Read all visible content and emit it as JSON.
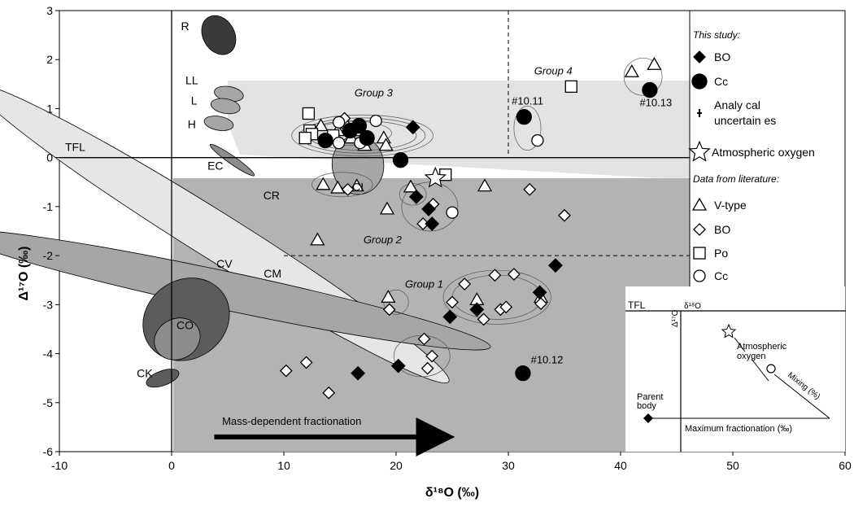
{
  "chart_data": {
    "type": "scatter",
    "xlabel": "δ¹⁸O (‰)",
    "ylabel": "Δ¹⁷O (‰)",
    "xlim": [
      -10,
      60
    ],
    "ylim": [
      -6,
      3
    ],
    "xticks": [
      "-10",
      "0",
      "10",
      "20",
      "30",
      "40",
      "50",
      "60"
    ],
    "yticks": [
      "-6",
      "-5",
      "-4",
      "-3",
      "-2",
      "-1",
      "0",
      "1",
      "2",
      "3"
    ],
    "grid": false,
    "tfl_label": "TFL",
    "fields": [
      {
        "label": "R",
        "cx": 4.2,
        "cy": 2.5,
        "rx": 1.4,
        "ry": 0.42,
        "angle": -30,
        "fill": "#3b3b3b"
      },
      {
        "label": "LL",
        "cx": 5.1,
        "cy": 1.3,
        "rx": 0.65,
        "ry": 0.3,
        "angle": -80,
        "fill": "#a6a6a6"
      },
      {
        "label": "L",
        "cx": 4.8,
        "cy": 1.05,
        "rx": 0.65,
        "ry": 0.3,
        "angle": -80,
        "fill": "#a6a6a6"
      },
      {
        "label": "H",
        "cx": 4.2,
        "cy": 0.7,
        "rx": 0.62,
        "ry": 0.3,
        "angle": -80,
        "fill": "#a6a6a6"
      },
      {
        "label": "EC",
        "cx": 5.4,
        "cy": -0.05,
        "rx": 0.35,
        "ry": 0.55,
        "angle": -55,
        "fill": "#8c8c8c"
      },
      {
        "label": "CR",
        "cx": 3.6,
        "cy": -1.55,
        "rx": 2.1,
        "ry": 5.7,
        "angle": -58,
        "fill": "#e6e6e6"
      },
      {
        "label": "CM",
        "cx": 4.5,
        "cy": -2.7,
        "rx": 1.7,
        "ry": 5.6,
        "angle": -78,
        "fill": "#a6a6a6"
      },
      {
        "label": "CV",
        "cx": 1.3,
        "cy": -3.3,
        "rx": 3.5,
        "ry": 0.92,
        "angle": 55,
        "fill": "#5c5c5c"
      },
      {
        "label": "CO",
        "cx": 0.5,
        "cy": -3.7,
        "rx": 1.8,
        "ry": 0.48,
        "angle": 63,
        "fill": "#8c8c8c"
      },
      {
        "label": "CK",
        "cx": -0.8,
        "cy": -4.5,
        "rx": 0.65,
        "ry": 0.35,
        "angle": 70,
        "fill": "#5c5c5c"
      },
      {
        "label": "CI",
        "cx": 16.6,
        "cy": -0.15,
        "rx": 2.3,
        "ry": 0.6,
        "angle": -5,
        "fill": "#a6a6a6"
      }
    ],
    "field_labels": [
      {
        "text": "R",
        "x": 1.2,
        "y": 2.6
      },
      {
        "text": "LL",
        "x": 1.8,
        "y": 1.5
      },
      {
        "text": "L",
        "x": 2.0,
        "y": 1.08
      },
      {
        "text": "H",
        "x": 1.8,
        "y": 0.6
      },
      {
        "text": "EC",
        "x": 3.9,
        "y": -0.25
      },
      {
        "text": "CR",
        "x": 8.9,
        "y": -0.85
      },
      {
        "text": "CV",
        "x": 4.7,
        "y": -2.25
      },
      {
        "text": "CM",
        "x": 9.0,
        "y": -2.45
      },
      {
        "text": "CO",
        "x": 1.2,
        "y": -3.5
      },
      {
        "text": "CK",
        "x": -2.4,
        "y": -4.48
      },
      {
        "text": "CI",
        "x": 16.6,
        "y": -0.68
      }
    ],
    "group_labels": [
      {
        "text": "Group 3",
        "x": 18.0,
        "y": 1.25
      },
      {
        "text": "Group 4",
        "x": 34.0,
        "y": 1.7
      },
      {
        "text": "Group 2",
        "x": 18.8,
        "y": -1.75
      },
      {
        "text": "Group 1",
        "x": 22.5,
        "y": -2.65
      }
    ],
    "annotations": [
      {
        "text": "#10.11",
        "x": 30.3,
        "y": 1.08
      },
      {
        "text": "#10.13",
        "x": 41.7,
        "y": 1.05
      },
      {
        "text": "#10.12",
        "x": 32.0,
        "y": -4.2
      }
    ],
    "arrow_label": "Mass-dependent fractionation",
    "series": [
      {
        "name": "BO",
        "group": "This study",
        "marker": "diamond",
        "filled": true,
        "points": [
          [
            21.5,
            0.62
          ],
          [
            21.8,
            -0.8
          ],
          [
            22.9,
            -1.05
          ],
          [
            23.2,
            -1.35
          ],
          [
            34.2,
            -2.2
          ],
          [
            32.8,
            -2.75
          ],
          [
            27.2,
            -3.1
          ],
          [
            24.8,
            -3.25
          ],
          [
            20.2,
            -4.25
          ],
          [
            16.6,
            -4.4
          ]
        ]
      },
      {
        "name": "Cc",
        "group": "This study",
        "marker": "circle",
        "filled": true,
        "points": [
          [
            31.4,
            0.83
          ],
          [
            42.6,
            1.38
          ],
          [
            13.7,
            0.35
          ],
          [
            15.9,
            0.55
          ],
          [
            16.7,
            0.65
          ],
          [
            17.4,
            0.4
          ],
          [
            20.4,
            -0.05
          ],
          [
            31.3,
            -4.4
          ]
        ]
      },
      {
        "name": "V-type",
        "group": "Data from literature",
        "marker": "triangle",
        "filled": false,
        "points": [
          [
            41.0,
            1.75
          ],
          [
            43.0,
            1.9
          ],
          [
            13.3,
            0.65
          ],
          [
            14.8,
            0.55
          ],
          [
            15.5,
            0.7
          ],
          [
            16.0,
            0.4
          ],
          [
            17.2,
            0.25
          ],
          [
            18.9,
            0.4
          ],
          [
            19.1,
            0.25
          ],
          [
            13.5,
            -0.55
          ],
          [
            14.8,
            -0.62
          ],
          [
            16.5,
            -0.58
          ],
          [
            21.3,
            -0.6
          ],
          [
            19.2,
            -1.05
          ],
          [
            27.9,
            -0.58
          ],
          [
            13.0,
            -1.68
          ],
          [
            19.3,
            -2.85
          ],
          [
            27.2,
            -2.9
          ],
          [
            32.9,
            -2.85
          ]
        ]
      },
      {
        "name": "BO",
        "group": "Data from literature",
        "marker": "diamond",
        "filled": false,
        "points": [
          [
            15.4,
            0.8
          ],
          [
            15.7,
            -0.65
          ],
          [
            22.4,
            -1.35
          ],
          [
            23.3,
            -0.95
          ],
          [
            31.9,
            -0.65
          ],
          [
            35.0,
            -1.18
          ],
          [
            26.1,
            -2.58
          ],
          [
            28.8,
            -2.4
          ],
          [
            30.5,
            -2.38
          ],
          [
            25.0,
            -2.95
          ],
          [
            27.8,
            -3.3
          ],
          [
            29.3,
            -3.1
          ],
          [
            29.8,
            -3.05
          ],
          [
            32.9,
            -2.98
          ],
          [
            19.4,
            -3.1
          ],
          [
            22.5,
            -3.7
          ],
          [
            23.2,
            -4.05
          ],
          [
            22.8,
            -4.3
          ],
          [
            10.2,
            -4.35
          ],
          [
            12.0,
            -4.18
          ],
          [
            14.0,
            -4.8
          ]
        ]
      },
      {
        "name": "Po",
        "group": "Data from literature",
        "marker": "square",
        "filled": false,
        "points": [
          [
            35.6,
            1.45
          ],
          [
            12.2,
            0.9
          ],
          [
            12.3,
            0.55
          ],
          [
            12.5,
            0.48
          ],
          [
            11.9,
            0.4
          ],
          [
            14.4,
            0.45
          ],
          [
            24.4,
            -0.35
          ]
        ]
      },
      {
        "name": "Cc",
        "group": "Data from literature",
        "marker": "circle",
        "filled": false,
        "points": [
          [
            14.9,
            0.72
          ],
          [
            18.2,
            0.75
          ],
          [
            14.9,
            0.3
          ],
          [
            16.8,
            0.3
          ],
          [
            32.6,
            0.35
          ],
          [
            25.0,
            -1.12
          ]
        ]
      }
    ],
    "special": [
      {
        "name": "Atmospheric oxygen",
        "marker": "star",
        "points": [
          [
            23.5,
            -0.42
          ]
        ]
      }
    ],
    "legend": {
      "placement": "right",
      "header_this_study": "This study:",
      "header_literature": "Data from literature:",
      "items": [
        {
          "marker": "diamond",
          "filled": true,
          "label": "BO"
        },
        {
          "marker": "circle",
          "filled": true,
          "label": "Cc"
        },
        {
          "marker": "cross",
          "filled": true,
          "label": "Analy cal",
          "label2": "uncertain es"
        },
        {
          "marker": "star",
          "filled": false,
          "label": "Atmospheric oxygen"
        },
        {
          "marker": "triangle",
          "filled": false,
          "label": "V-type"
        },
        {
          "marker": "diamond",
          "filled": false,
          "label": "BO"
        },
        {
          "marker": "square",
          "filled": false,
          "label": "Po"
        },
        {
          "marker": "circle",
          "filled": false,
          "label": "Cc"
        }
      ]
    },
    "inset": {
      "tfl_label": "TFL",
      "x_axis_label": "δ¹⁸O",
      "y_axis_label": "Δ¹⁷O",
      "atm_label_1": "Atmospheric",
      "atm_label_2": "oxygen",
      "mixing_label": "Mixing (%)",
      "parent_label_1": "Parent",
      "parent_label_2": "body",
      "max_frac_label": "Maximum fractionation (‰)"
    }
  }
}
